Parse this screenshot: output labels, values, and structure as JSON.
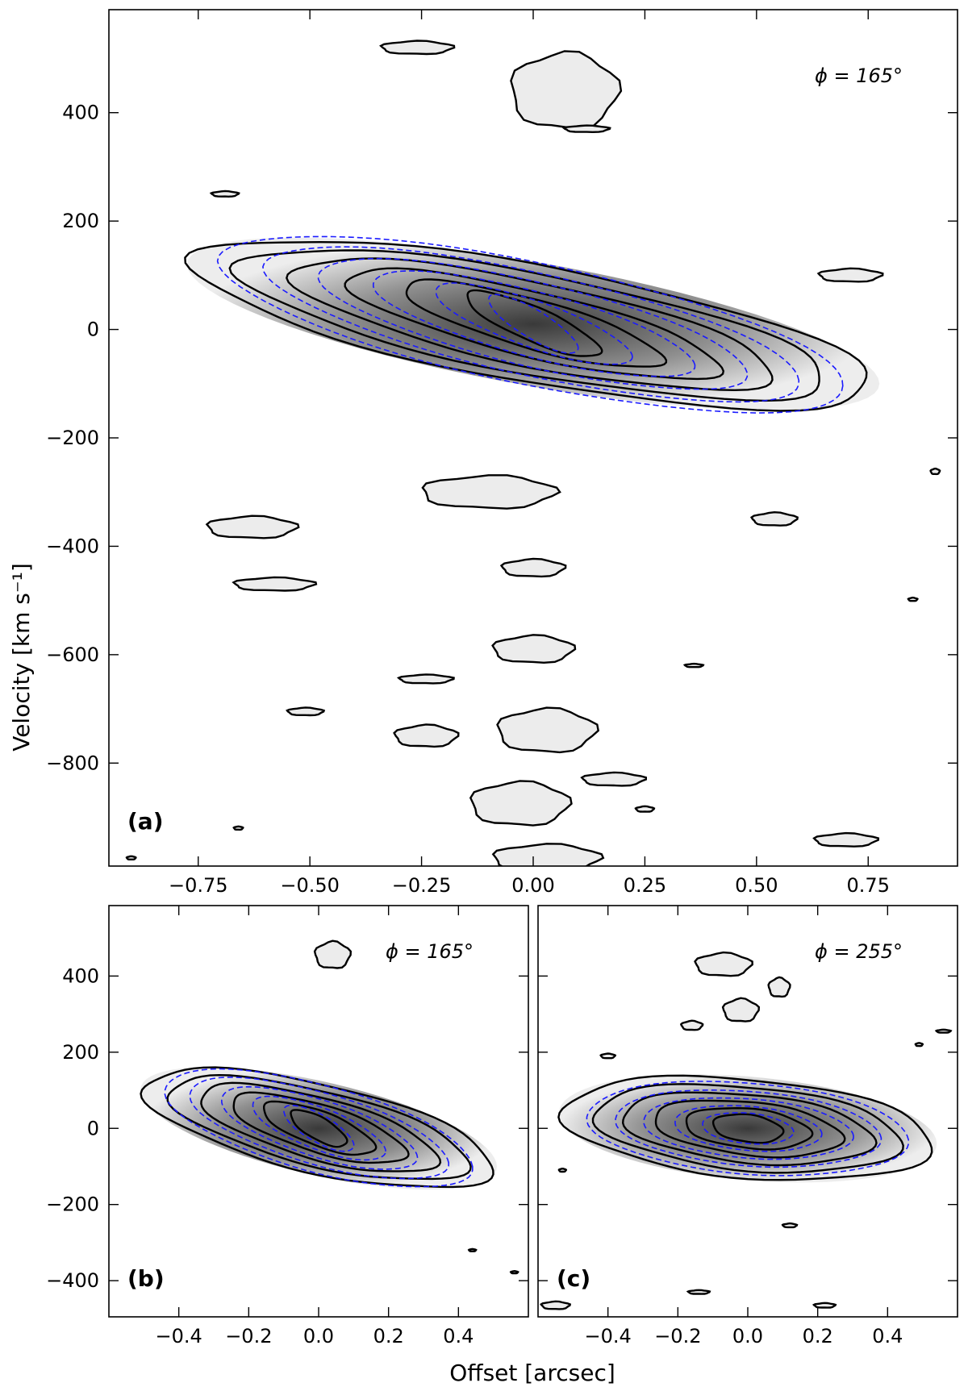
{
  "figure": {
    "shared_xlabel": "Offset [arcsec]",
    "shared_ylabel": "Velocity [km s⁻¹]"
  },
  "colors": {
    "data_contour": "#000000",
    "model_contour": "#1a1aff",
    "greyscale_dark": "#2f2f2f",
    "greyscale_light": "#ececec"
  },
  "chart_data": [
    {
      "type": "heatmap",
      "panel": "(a)",
      "annotation": "ϕ = 165°",
      "xlim": [
        -0.95,
        0.95
      ],
      "ylim": [
        -990,
        590
      ],
      "xticks": [
        -0.75,
        -0.5,
        -0.25,
        0.0,
        0.25,
        0.5,
        0.75
      ],
      "xtick_labels": [
        "−0.75",
        "−0.50",
        "−0.25",
        "0.00",
        "0.25",
        "0.50",
        "0.75"
      ],
      "yticks": [
        400,
        200,
        0,
        -200,
        -400,
        -600,
        -800
      ],
      "ytick_labels": [
        "400",
        "200",
        "0",
        "−200",
        "−400",
        "−600",
        "−800"
      ],
      "main_emission": {
        "center": [
          0.0,
          10
        ],
        "data_contours": [
          {
            "rx": 0.76,
            "ry": 110,
            "tilt": -110
          },
          {
            "rx": 0.66,
            "ry": 95,
            "tilt": -100
          },
          {
            "rx": 0.54,
            "ry": 80,
            "tilt": -90
          },
          {
            "rx": 0.42,
            "ry": 62,
            "tilt": -80
          },
          {
            "rx": 0.29,
            "ry": 47,
            "tilt": -65
          },
          {
            "rx": 0.15,
            "ry": 34,
            "tilt": -50
          }
        ],
        "model_contours": [
          {
            "rx": 0.7,
            "ry": 115,
            "tilt": -115
          },
          {
            "rx": 0.6,
            "ry": 97,
            "tilt": -105
          },
          {
            "rx": 0.48,
            "ry": 80,
            "tilt": -90
          },
          {
            "rx": 0.36,
            "ry": 62,
            "tilt": -75
          },
          {
            "rx": 0.22,
            "ry": 45,
            "tilt": -60
          },
          {
            "rx": 0.1,
            "ry": 30,
            "tilt": -45
          }
        ]
      },
      "isolated_blobs": [
        {
          "x": -0.26,
          "y": 520,
          "rx": 0.08,
          "ry": 12
        },
        {
          "x": 0.07,
          "y": 440,
          "rx": 0.12,
          "ry": 70
        },
        {
          "x": 0.12,
          "y": 370,
          "rx": 0.05,
          "ry": 6
        },
        {
          "x": -0.69,
          "y": 250,
          "rx": 0.03,
          "ry": 5
        },
        {
          "x": 0.71,
          "y": 100,
          "rx": 0.07,
          "ry": 12
        },
        {
          "x": -0.1,
          "y": -300,
          "rx": 0.15,
          "ry": 30
        },
        {
          "x": -0.63,
          "y": -365,
          "rx": 0.1,
          "ry": 20
        },
        {
          "x": 0.54,
          "y": -350,
          "rx": 0.05,
          "ry": 12
        },
        {
          "x": 0.9,
          "y": -262,
          "rx": 0.01,
          "ry": 5
        },
        {
          "x": 0.0,
          "y": -440,
          "rx": 0.07,
          "ry": 16
        },
        {
          "x": -0.58,
          "y": -470,
          "rx": 0.09,
          "ry": 12
        },
        {
          "x": 0.85,
          "y": -498,
          "rx": 0.01,
          "ry": 3
        },
        {
          "x": 0.0,
          "y": -590,
          "rx": 0.09,
          "ry": 25
        },
        {
          "x": 0.36,
          "y": -620,
          "rx": 0.02,
          "ry": 3
        },
        {
          "x": -0.24,
          "y": -645,
          "rx": 0.06,
          "ry": 8
        },
        {
          "x": -0.51,
          "y": -705,
          "rx": 0.04,
          "ry": 7
        },
        {
          "x": -0.24,
          "y": -750,
          "rx": 0.07,
          "ry": 20
        },
        {
          "x": 0.03,
          "y": -740,
          "rx": 0.11,
          "ry": 40
        },
        {
          "x": -0.03,
          "y": -875,
          "rx": 0.11,
          "ry": 40
        },
        {
          "x": 0.18,
          "y": -830,
          "rx": 0.07,
          "ry": 12
        },
        {
          "x": 0.25,
          "y": -885,
          "rx": 0.02,
          "ry": 5
        },
        {
          "x": -0.66,
          "y": -920,
          "rx": 0.01,
          "ry": 3
        },
        {
          "x": 0.7,
          "y": -942,
          "rx": 0.07,
          "ry": 12
        },
        {
          "x": -0.9,
          "y": -975,
          "rx": 0.01,
          "ry": 3
        },
        {
          "x": 0.03,
          "y": -975,
          "rx": 0.12,
          "ry": 25
        }
      ]
    },
    {
      "type": "heatmap",
      "panel": "(b)",
      "annotation": "ϕ = 165°",
      "xlim": [
        -0.6,
        0.6
      ],
      "ylim": [
        -495,
        585
      ],
      "xticks": [
        -0.4,
        -0.2,
        0.0,
        0.2,
        0.4
      ],
      "xtick_labels": [
        "−0.4",
        "−0.2",
        "0.0",
        "0.2",
        "0.4"
      ],
      "yticks": [
        400,
        200,
        0,
        -200,
        -400
      ],
      "ytick_labels": [
        "400",
        "200",
        "0",
        "−200",
        "−400"
      ],
      "main_emission": {
        "center": [
          0.0,
          0
        ],
        "data_contours": [
          {
            "rx": 0.5,
            "ry": 120,
            "tilt": -100
          },
          {
            "rx": 0.43,
            "ry": 102,
            "tilt": -90
          },
          {
            "rx": 0.34,
            "ry": 84,
            "tilt": -80
          },
          {
            "rx": 0.25,
            "ry": 65,
            "tilt": -65
          },
          {
            "rx": 0.16,
            "ry": 48,
            "tilt": -50
          },
          {
            "rx": 0.08,
            "ry": 33,
            "tilt": -35
          }
        ],
        "model_contours": [
          {
            "rx": 0.44,
            "ry": 118,
            "tilt": -100
          },
          {
            "rx": 0.37,
            "ry": 98,
            "tilt": -90
          },
          {
            "rx": 0.28,
            "ry": 78,
            "tilt": -75
          },
          {
            "rx": 0.19,
            "ry": 58,
            "tilt": -60
          },
          {
            "rx": 0.1,
            "ry": 40,
            "tilt": -45
          }
        ]
      },
      "isolated_blobs": [
        {
          "x": 0.04,
          "y": 455,
          "rx": 0.05,
          "ry": 35
        },
        {
          "x": 0.44,
          "y": -320,
          "rx": 0.01,
          "ry": 3
        },
        {
          "x": 0.56,
          "y": -378,
          "rx": 0.01,
          "ry": 3
        }
      ]
    },
    {
      "type": "heatmap",
      "panel": "(c)",
      "annotation": "ϕ = 255°",
      "xlim": [
        -0.6,
        0.6
      ],
      "ylim": [
        -495,
        585
      ],
      "xticks": [
        -0.4,
        -0.2,
        0.0,
        0.2,
        0.4
      ],
      "xtick_labels": [
        "−0.4",
        "−0.2",
        "0.0",
        "0.2",
        "0.4"
      ],
      "yticks": [
        400,
        200,
        0,
        -200,
        -400
      ],
      "ytick_labels": [
        "400",
        "200",
        "0",
        "−200",
        "−400"
      ],
      "main_emission": {
        "center": [
          0.0,
          0
        ],
        "data_contours": [
          {
            "rx": 0.53,
            "ry": 130,
            "tilt": -40
          },
          {
            "rx": 0.44,
            "ry": 110,
            "tilt": -35
          },
          {
            "rx": 0.36,
            "ry": 90,
            "tilt": -30
          },
          {
            "rx": 0.27,
            "ry": 70,
            "tilt": -25
          },
          {
            "rx": 0.18,
            "ry": 52,
            "tilt": -15
          },
          {
            "rx": 0.1,
            "ry": 36,
            "tilt": -10
          }
        ],
        "model_contours": [
          {
            "rx": 0.46,
            "ry": 120,
            "tilt": -30
          },
          {
            "rx": 0.38,
            "ry": 98,
            "tilt": -25
          },
          {
            "rx": 0.3,
            "ry": 78,
            "tilt": -20
          },
          {
            "rx": 0.21,
            "ry": 58,
            "tilt": -15
          },
          {
            "rx": 0.13,
            "ry": 40,
            "tilt": -10
          }
        ]
      },
      "isolated_blobs": [
        {
          "x": -0.07,
          "y": 430,
          "rx": 0.08,
          "ry": 30
        },
        {
          "x": 0.09,
          "y": 370,
          "rx": 0.03,
          "ry": 25
        },
        {
          "x": -0.02,
          "y": 310,
          "rx": 0.05,
          "ry": 30
        },
        {
          "x": -0.16,
          "y": 270,
          "rx": 0.03,
          "ry": 12
        },
        {
          "x": -0.4,
          "y": 190,
          "rx": 0.02,
          "ry": 6
        },
        {
          "x": 0.49,
          "y": 220,
          "rx": 0.01,
          "ry": 4
        },
        {
          "x": 0.56,
          "y": 255,
          "rx": 0.02,
          "ry": 4
        },
        {
          "x": -0.53,
          "y": -110,
          "rx": 0.01,
          "ry": 4
        },
        {
          "x": 0.12,
          "y": -255,
          "rx": 0.02,
          "ry": 5
        },
        {
          "x": -0.14,
          "y": -430,
          "rx": 0.03,
          "ry": 5
        },
        {
          "x": 0.22,
          "y": -465,
          "rx": 0.03,
          "ry": 6
        },
        {
          "x": -0.55,
          "y": -465,
          "rx": 0.04,
          "ry": 10
        }
      ]
    }
  ]
}
